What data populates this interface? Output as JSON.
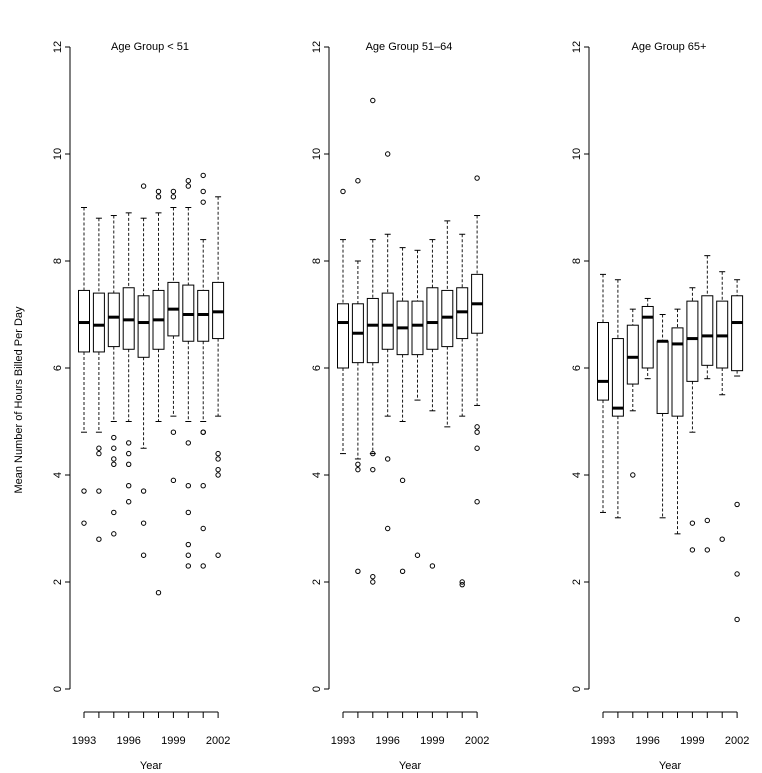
{
  "ylabel": "Mean Number of Hours Billed Per Day",
  "chart_data": [
    {
      "type": "boxplot",
      "title": "Age Group < 51",
      "xlabel": "Year",
      "ylabel": "Mean Number of Hours Billed Per Day",
      "ylim": [
        0,
        12
      ],
      "yticks": [
        0,
        2,
        4,
        6,
        8,
        10,
        12
      ],
      "x_tick_labels": [
        "1993",
        "1996",
        "1999",
        "2002"
      ],
      "categories": [
        "1993",
        "1994",
        "1995",
        "1996",
        "1997",
        "1998",
        "1999",
        "2000",
        "2001",
        "2002"
      ],
      "boxes": [
        {
          "whisker_low": 4.8,
          "q1": 6.3,
          "median": 6.85,
          "q3": 7.45,
          "whisker_high": 9.0,
          "outliers": [
            3.1,
            3.7
          ]
        },
        {
          "whisker_low": 4.8,
          "q1": 6.3,
          "median": 6.8,
          "q3": 7.4,
          "whisker_high": 8.8,
          "outliers": [
            4.5,
            4.4,
            3.7,
            2.8
          ]
        },
        {
          "whisker_low": 5.0,
          "q1": 6.4,
          "median": 6.95,
          "q3": 7.4,
          "whisker_high": 8.85,
          "outliers": [
            4.7,
            4.5,
            4.3,
            4.2,
            3.3,
            2.9
          ]
        },
        {
          "whisker_low": 5.0,
          "q1": 6.35,
          "median": 6.9,
          "q3": 7.5,
          "whisker_high": 8.9,
          "outliers": [
            4.6,
            4.4,
            4.2,
            3.8,
            3.5
          ]
        },
        {
          "whisker_low": 4.5,
          "q1": 6.2,
          "median": 6.85,
          "q3": 7.35,
          "whisker_high": 8.8,
          "outliers": [
            9.4,
            3.7,
            3.1,
            2.5
          ]
        },
        {
          "whisker_low": 5.0,
          "q1": 6.35,
          "median": 6.9,
          "q3": 7.45,
          "whisker_high": 8.9,
          "outliers": [
            9.2,
            9.3,
            1.8
          ]
        },
        {
          "whisker_low": 5.1,
          "q1": 6.6,
          "median": 7.1,
          "q3": 7.6,
          "whisker_high": 9.0,
          "outliers": [
            9.3,
            9.2,
            4.8,
            3.9
          ]
        },
        {
          "whisker_low": 5.0,
          "q1": 6.5,
          "median": 7.0,
          "q3": 7.55,
          "whisker_high": 9.0,
          "outliers": [
            9.5,
            9.4,
            4.6,
            3.8,
            3.3,
            2.7,
            2.5,
            2.3
          ]
        },
        {
          "whisker_low": 5.0,
          "q1": 6.5,
          "median": 7.0,
          "q3": 7.45,
          "whisker_high": 8.4,
          "outliers": [
            9.6,
            9.3,
            9.1,
            4.8,
            4.8,
            3.8,
            3.0,
            2.3
          ]
        },
        {
          "whisker_low": 5.1,
          "q1": 6.55,
          "median": 7.05,
          "q3": 7.6,
          "whisker_high": 9.2,
          "outliers": [
            4.4,
            4.3,
            4.1,
            4.0,
            2.5
          ]
        }
      ]
    },
    {
      "type": "boxplot",
      "title": "Age Group 51–64",
      "xlabel": "Year",
      "ylim": [
        0,
        12
      ],
      "yticks": [
        0,
        2,
        4,
        6,
        8,
        10,
        12
      ],
      "x_tick_labels": [
        "1993",
        "1996",
        "1999",
        "2002"
      ],
      "categories": [
        "1993",
        "1994",
        "1995",
        "1996",
        "1997",
        "1998",
        "1999",
        "2000",
        "2001",
        "2002"
      ],
      "boxes": [
        {
          "whisker_low": 4.4,
          "q1": 6.0,
          "median": 6.85,
          "q3": 7.2,
          "whisker_high": 8.4,
          "outliers": [
            9.3
          ]
        },
        {
          "whisker_low": 4.3,
          "q1": 6.1,
          "median": 6.65,
          "q3": 7.2,
          "whisker_high": 8.0,
          "outliers": [
            9.5,
            4.2,
            4.1,
            2.2
          ]
        },
        {
          "whisker_low": 4.4,
          "q1": 6.1,
          "median": 6.8,
          "q3": 7.3,
          "whisker_high": 8.4,
          "outliers": [
            11.0,
            4.4,
            4.1,
            2.1,
            2.0
          ]
        },
        {
          "whisker_low": 5.1,
          "q1": 6.35,
          "median": 6.8,
          "q3": 7.4,
          "whisker_high": 8.5,
          "outliers": [
            10.0,
            4.3,
            3.0
          ]
        },
        {
          "whisker_low": 5.0,
          "q1": 6.25,
          "median": 6.75,
          "q3": 7.25,
          "whisker_high": 8.25,
          "outliers": [
            3.9,
            2.2
          ]
        },
        {
          "whisker_low": 5.4,
          "q1": 6.25,
          "median": 6.8,
          "q3": 7.25,
          "whisker_high": 8.2,
          "outliers": [
            2.5
          ]
        },
        {
          "whisker_low": 5.2,
          "q1": 6.35,
          "median": 6.85,
          "q3": 7.5,
          "whisker_high": 8.4,
          "outliers": [
            2.3
          ]
        },
        {
          "whisker_low": 4.9,
          "q1": 6.4,
          "median": 6.95,
          "q3": 7.45,
          "whisker_high": 8.75,
          "outliers": []
        },
        {
          "whisker_low": 5.1,
          "q1": 6.55,
          "median": 7.05,
          "q3": 7.5,
          "whisker_high": 8.5,
          "outliers": [
            2.0,
            1.95
          ]
        },
        {
          "whisker_low": 5.3,
          "q1": 6.65,
          "median": 7.2,
          "q3": 7.75,
          "whisker_high": 8.85,
          "outliers": [
            9.55,
            4.9,
            4.8,
            4.5,
            3.5
          ]
        }
      ]
    },
    {
      "type": "boxplot",
      "title": "Age Group 65+",
      "xlabel": "Year",
      "ylim": [
        0,
        12
      ],
      "yticks": [
        0,
        2,
        4,
        6,
        8,
        10,
        12
      ],
      "x_tick_labels": [
        "1993",
        "1996",
        "1999",
        "2002"
      ],
      "categories": [
        "1993",
        "1994",
        "1995",
        "1996",
        "1997",
        "1998",
        "1999",
        "2000",
        "2001",
        "2002"
      ],
      "boxes": [
        {
          "whisker_low": 3.3,
          "q1": 5.4,
          "median": 5.75,
          "q3": 6.85,
          "whisker_high": 7.75,
          "outliers": []
        },
        {
          "whisker_low": 3.2,
          "q1": 5.1,
          "median": 5.25,
          "q3": 6.55,
          "whisker_high": 7.65,
          "outliers": []
        },
        {
          "whisker_low": 5.2,
          "q1": 5.7,
          "median": 6.2,
          "q3": 6.8,
          "whisker_high": 7.1,
          "outliers": [
            4.0
          ]
        },
        {
          "whisker_low": 5.8,
          "q1": 6.0,
          "median": 6.95,
          "q3": 7.15,
          "whisker_high": 7.3,
          "outliers": []
        },
        {
          "whisker_low": 3.2,
          "q1": 5.15,
          "median": 6.5,
          "q3": 6.5,
          "whisker_high": 7.0,
          "outliers": []
        },
        {
          "whisker_low": 2.9,
          "q1": 5.1,
          "median": 6.45,
          "q3": 6.75,
          "whisker_high": 7.1,
          "outliers": []
        },
        {
          "whisker_low": 4.8,
          "q1": 5.75,
          "median": 6.55,
          "q3": 7.25,
          "whisker_high": 7.5,
          "outliers": [
            3.1,
            2.6
          ]
        },
        {
          "whisker_low": 5.8,
          "q1": 6.05,
          "median": 6.6,
          "q3": 7.35,
          "whisker_high": 8.1,
          "outliers": [
            3.15,
            2.6
          ]
        },
        {
          "whisker_low": 5.5,
          "q1": 6.0,
          "median": 6.6,
          "q3": 7.25,
          "whisker_high": 7.8,
          "outliers": [
            2.8
          ]
        },
        {
          "whisker_low": 5.85,
          "q1": 5.95,
          "median": 6.85,
          "q3": 7.35,
          "whisker_high": 7.65,
          "outliers": [
            3.45,
            2.15,
            1.3
          ]
        }
      ]
    }
  ]
}
